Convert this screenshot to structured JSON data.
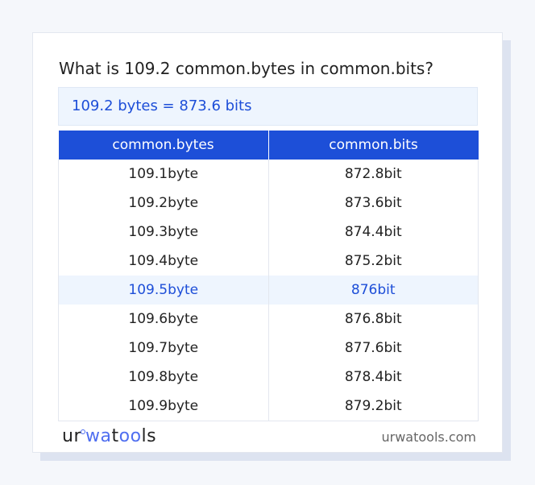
{
  "title": "What is 109.2 common.bytes in common.bits?",
  "result": "109.2 bytes = 873.6 bits",
  "table": {
    "headers": [
      "common.bytes",
      "common.bits"
    ],
    "rows": [
      [
        "109.1byte",
        "872.8bit"
      ],
      [
        "109.2byte",
        "873.6bit"
      ],
      [
        "109.3byte",
        "874.4bit"
      ],
      [
        "109.4byte",
        "875.2bit"
      ],
      [
        "109.5byte",
        "876bit"
      ],
      [
        "109.6byte",
        "876.8bit"
      ],
      [
        "109.7byte",
        "877.6bit"
      ],
      [
        "109.8byte",
        "878.4bit"
      ],
      [
        "109.9byte",
        "879.2bit"
      ]
    ],
    "highlighted_row": 4
  },
  "footer": {
    "logo": "urwatools",
    "site": "urwatools.com"
  },
  "colors": {
    "accent": "#1d4fd8",
    "highlight_bg": "#eef5fe"
  }
}
